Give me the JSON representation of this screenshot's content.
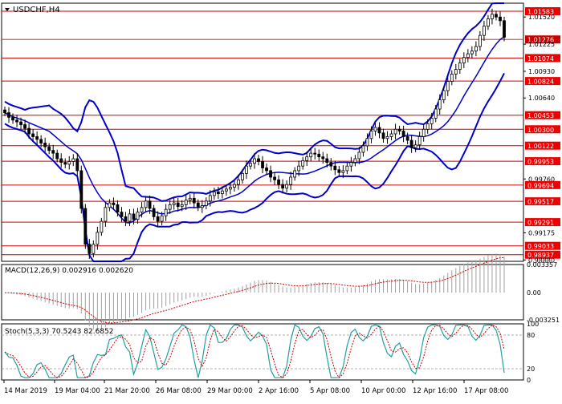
{
  "main": {
    "title": "USDCHF,H4",
    "ylim": [
      0.98865,
      1.0167
    ],
    "current_price": "1.01276",
    "price_labels": [
      {
        "label": "1.01583",
        "value": 1.01583,
        "hl": true
      },
      {
        "label": "1.01520",
        "value": 1.0152,
        "hl": false
      },
      {
        "label": "1.01276",
        "value": 1.01276,
        "hl": "current"
      },
      {
        "label": "1.01225",
        "value": 1.01225,
        "hl": false
      },
      {
        "label": "1.01074",
        "value": 1.01074,
        "hl": true
      },
      {
        "label": "1.00930",
        "value": 1.0093,
        "hl": false
      },
      {
        "label": "1.00824",
        "value": 1.00824,
        "hl": true
      },
      {
        "label": "1.00640",
        "value": 1.0064,
        "hl": false
      },
      {
        "label": "1.00453",
        "value": 1.00453,
        "hl": true
      },
      {
        "label": "1.00300",
        "value": 1.003,
        "hl": true
      },
      {
        "label": "1.00122",
        "value": 1.00122,
        "hl": true
      },
      {
        "label": "0.99953",
        "value": 0.99953,
        "hl": true
      },
      {
        "label": "0.99760",
        "value": 0.9976,
        "hl": false
      },
      {
        "label": "0.99694",
        "value": 0.99694,
        "hl": true
      },
      {
        "label": "0.99517",
        "value": 0.99517,
        "hl": true
      },
      {
        "label": "0.99291",
        "value": 0.99291,
        "hl": true
      },
      {
        "label": "0.99175",
        "value": 0.99175,
        "hl": false
      },
      {
        "label": "0.99033",
        "value": 0.99033,
        "hl": true
      },
      {
        "label": "0.98937",
        "value": 0.98937,
        "hl": true
      },
      {
        "label": "0.98880",
        "value": 0.9888,
        "hl": false
      }
    ],
    "levels": [
      1.01583,
      1.01276,
      1.01074,
      1.00824,
      1.00453,
      1.003,
      1.00122,
      0.99953,
      0.99694,
      0.99517,
      0.99291,
      0.99033,
      0.98937
    ]
  },
  "macd": {
    "label": "MACD(12,26,9) 0.002916 0.002620",
    "ylim": [
      -0.003251,
      0.003357
    ],
    "ticks": [
      {
        "label": "0.003357",
        "value": 0.003357
      },
      {
        "label": "0.00",
        "value": 0
      },
      {
        "label": "-0.003251",
        "value": -0.003251
      }
    ]
  },
  "stoch": {
    "label": "Stoch(5,3,3) 70.5243 82.6852",
    "ylim": [
      0,
      100
    ],
    "ticks": [
      {
        "label": "100",
        "value": 100
      },
      {
        "label": "80",
        "value": 80
      },
      {
        "label": "20",
        "value": 20
      },
      {
        "label": "0",
        "value": 0
      }
    ]
  },
  "x_labels": [
    "14 Mar 2019",
    "19 Mar 04:00",
    "21 Mar 20:00",
    "26 Mar 08:00",
    "29 Mar 00:00",
    "2 Apr 16:00",
    "5 Apr 08:00",
    "10 Apr 00:00",
    "12 Apr 16:00",
    "17 Apr 08:00"
  ],
  "colors": {
    "up": "#000000",
    "down": "#000000",
    "bands": "#0000cc",
    "level": "#cc0000",
    "label_bg": "#ee0000",
    "macd_hist": "#a0a0a0",
    "macd_signal": "#cc0000",
    "stoch_main": "#20a0a0",
    "stoch_signal": "#cc0000"
  },
  "chart_data": {
    "type": "candlestick",
    "title": "USDCHF,H4",
    "close_series": [
      1.0048,
      1.0043,
      1.004,
      1.0038,
      1.0035,
      1.0031,
      1.0025,
      1.0022,
      1.0019,
      1.0015,
      1.0011,
      1.0007,
      1.0004,
      0.9998,
      0.9994,
      0.9992,
      0.9995,
      0.9998,
      0.9985,
      0.9944,
      0.9905,
      0.9895,
      0.9905,
      0.9918,
      0.993,
      0.9945,
      0.995,
      0.9948,
      0.994,
      0.9935,
      0.993,
      0.9938,
      0.9932,
      0.994,
      0.9945,
      0.9952,
      0.9944,
      0.9935,
      0.993,
      0.9936,
      0.9943,
      0.9948,
      0.995,
      0.9946,
      0.9948,
      0.9953,
      0.9955,
      0.995,
      0.9945,
      0.9947,
      0.9952,
      0.9958,
      0.9962,
      0.996,
      0.9963,
      0.9965,
      0.9967,
      0.997,
      0.9975,
      0.9982,
      0.999,
      0.9993,
      0.9998,
      0.9995,
      0.9988,
      0.9985,
      0.9978,
      0.9975,
      0.997,
      0.9966,
      0.997,
      0.9978,
      0.9985,
      0.999,
      0.9996,
      1.0,
      1.0004,
      1.0003,
      1.0,
      0.9998,
      0.9994,
      0.999,
      0.9986,
      0.9983,
      0.9985,
      0.999,
      0.9994,
      0.9998,
      1.0005,
      1.0012,
      1.002,
      1.0028,
      1.0032,
      1.0026,
      1.002,
      1.0022,
      1.0025,
      1.003,
      1.0028,
      1.0022,
      1.0018,
      1.001,
      1.0013,
      1.0022,
      1.003,
      1.0036,
      1.0042,
      1.0052,
      1.0062,
      1.0072,
      1.0082,
      1.009,
      1.0095,
      1.0102,
      1.0108,
      1.0112,
      1.0115,
      1.012,
      1.0132,
      1.0142,
      1.015,
      1.0155,
      1.0152,
      1.0148,
      1.013
    ]
  }
}
